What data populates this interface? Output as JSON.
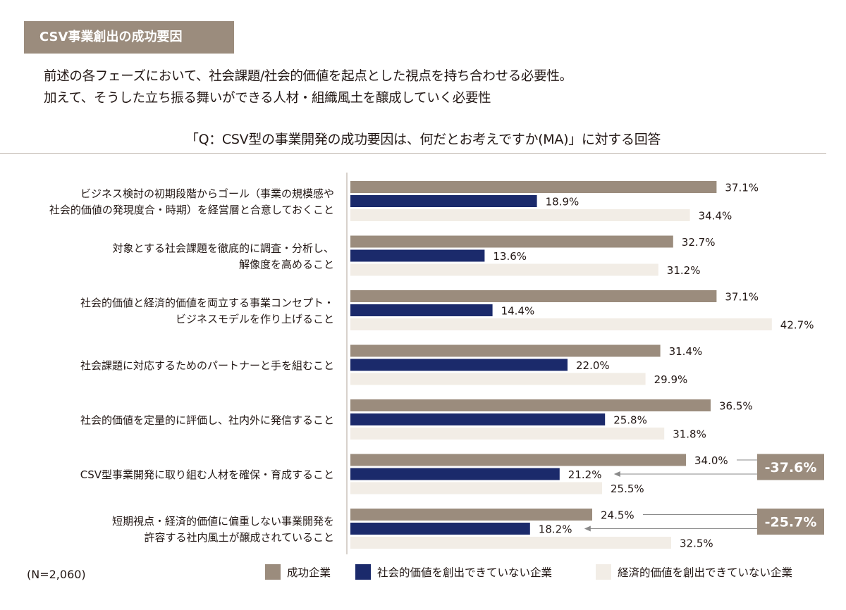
{
  "header": {
    "tag": "CSV事業創出の成功要因",
    "subtitle_line1": "前述の各フェーズにおいて、社会課題/社会的価値を起点とした視点を持ち合わせる必要性。",
    "subtitle_line2": "加えて、そうした立ち振る舞いができる人材・組織風土を醸成していく必要性",
    "question": "「Q：CSV型の事業開発の成功要因は、何だとお考えですか(MA)」に対する回答"
  },
  "footnote": "(N=2,060)",
  "colors": {
    "success": "#9b8c7d",
    "no_social": "#1b2a6b",
    "no_economic": "#f2ede6",
    "axis": "#bdb4ab",
    "callout": "#9b8c7d"
  },
  "chart_data": {
    "type": "bar",
    "orientation": "horizontal",
    "categories": [
      [
        "ビジネス検討の初期段階からゴール（事業の規模感や",
        "社会的価値の発現度合・時期）を経営層と合意しておくこと"
      ],
      [
        "対象とする社会課題を徹底的に調査・分析し、",
        "解像度を高めること"
      ],
      [
        "社会的価値と経済的価値を両立する事業コンセプト・",
        "ビジネスモデルを作り上げること"
      ],
      [
        "社会課題に対応するためのパートナーと手を組むこと"
      ],
      [
        "社会的価値を定量的に評価し、社内外に発信すること"
      ],
      [
        "CSV型事業開発に取り組む人材を確保・育成すること"
      ],
      [
        "短期視点・経済的価値に偏重しない事業開発を",
        "許容する社内風土が醸成されていること"
      ]
    ],
    "series": [
      {
        "name": "成功企業",
        "values": [
          37.1,
          32.7,
          37.1,
          31.4,
          36.5,
          34.0,
          24.5
        ]
      },
      {
        "name": "社会的価値を創出できていない企業",
        "values": [
          18.9,
          13.6,
          14.4,
          22.0,
          25.8,
          21.2,
          18.2
        ]
      },
      {
        "name": "経済的価値を創出できていない企業",
        "values": [
          34.4,
          31.2,
          42.7,
          29.9,
          31.8,
          25.5,
          32.5
        ]
      }
    ],
    "value_suffix": "%",
    "annotations": [
      {
        "category_index": 5,
        "label": "-37.6%"
      },
      {
        "category_index": 6,
        "label": "-25.7%"
      }
    ],
    "legend_position": "bottom-right",
    "grid": false
  }
}
